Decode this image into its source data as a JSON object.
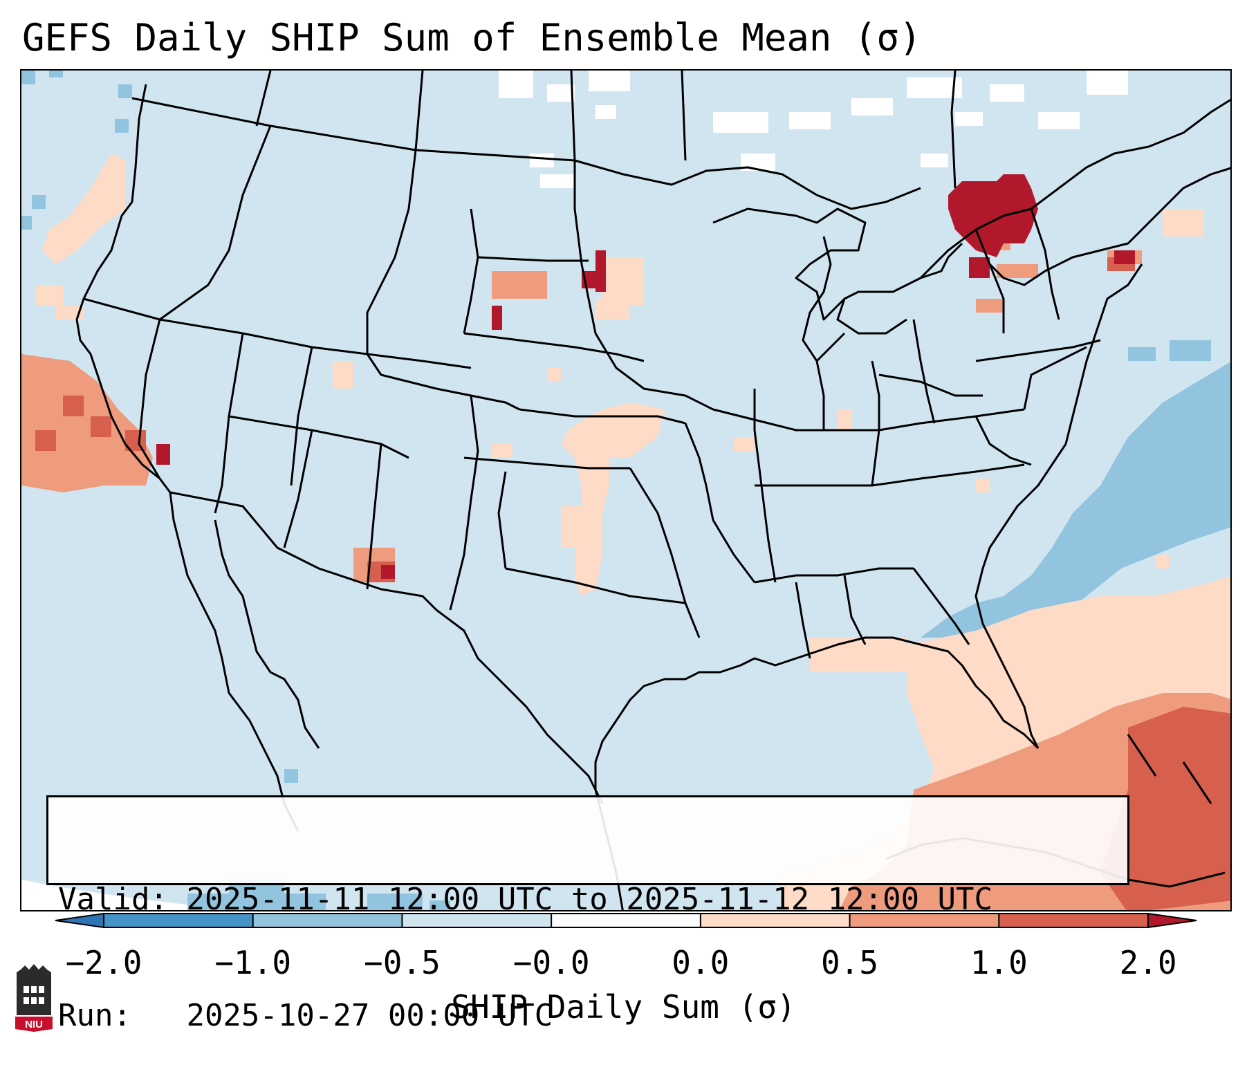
{
  "title": "GEFS Daily SHIP Sum of Ensemble Mean (σ)",
  "info": {
    "valid_label": "Valid:",
    "valid_value": "2025-11-11 12:00 UTC to 2025-11-12 12:00 UTC",
    "run_label": "Run:",
    "run_value": "2025-10-27 00:00 UTC"
  },
  "colorbar": {
    "label": "SHIP Daily Sum (σ)",
    "ticks": [
      "−2.0",
      "−1.0",
      "−0.5",
      "−0.0",
      "0.0",
      "0.5",
      "1.0",
      "2.0"
    ],
    "colors": [
      "#4693c7",
      "#93c4df",
      "#d1e5f0",
      "#fbfcfd",
      "#fddbc7",
      "#ee9b7e",
      "#d6604d",
      "#b2182b"
    ]
  },
  "map_colors": {
    "background": "#d1e5f0",
    "outside_domain": "#ffffff",
    "lines": "#000000"
  },
  "logo": {
    "text": "NIU",
    "color": "#c8102e"
  }
}
